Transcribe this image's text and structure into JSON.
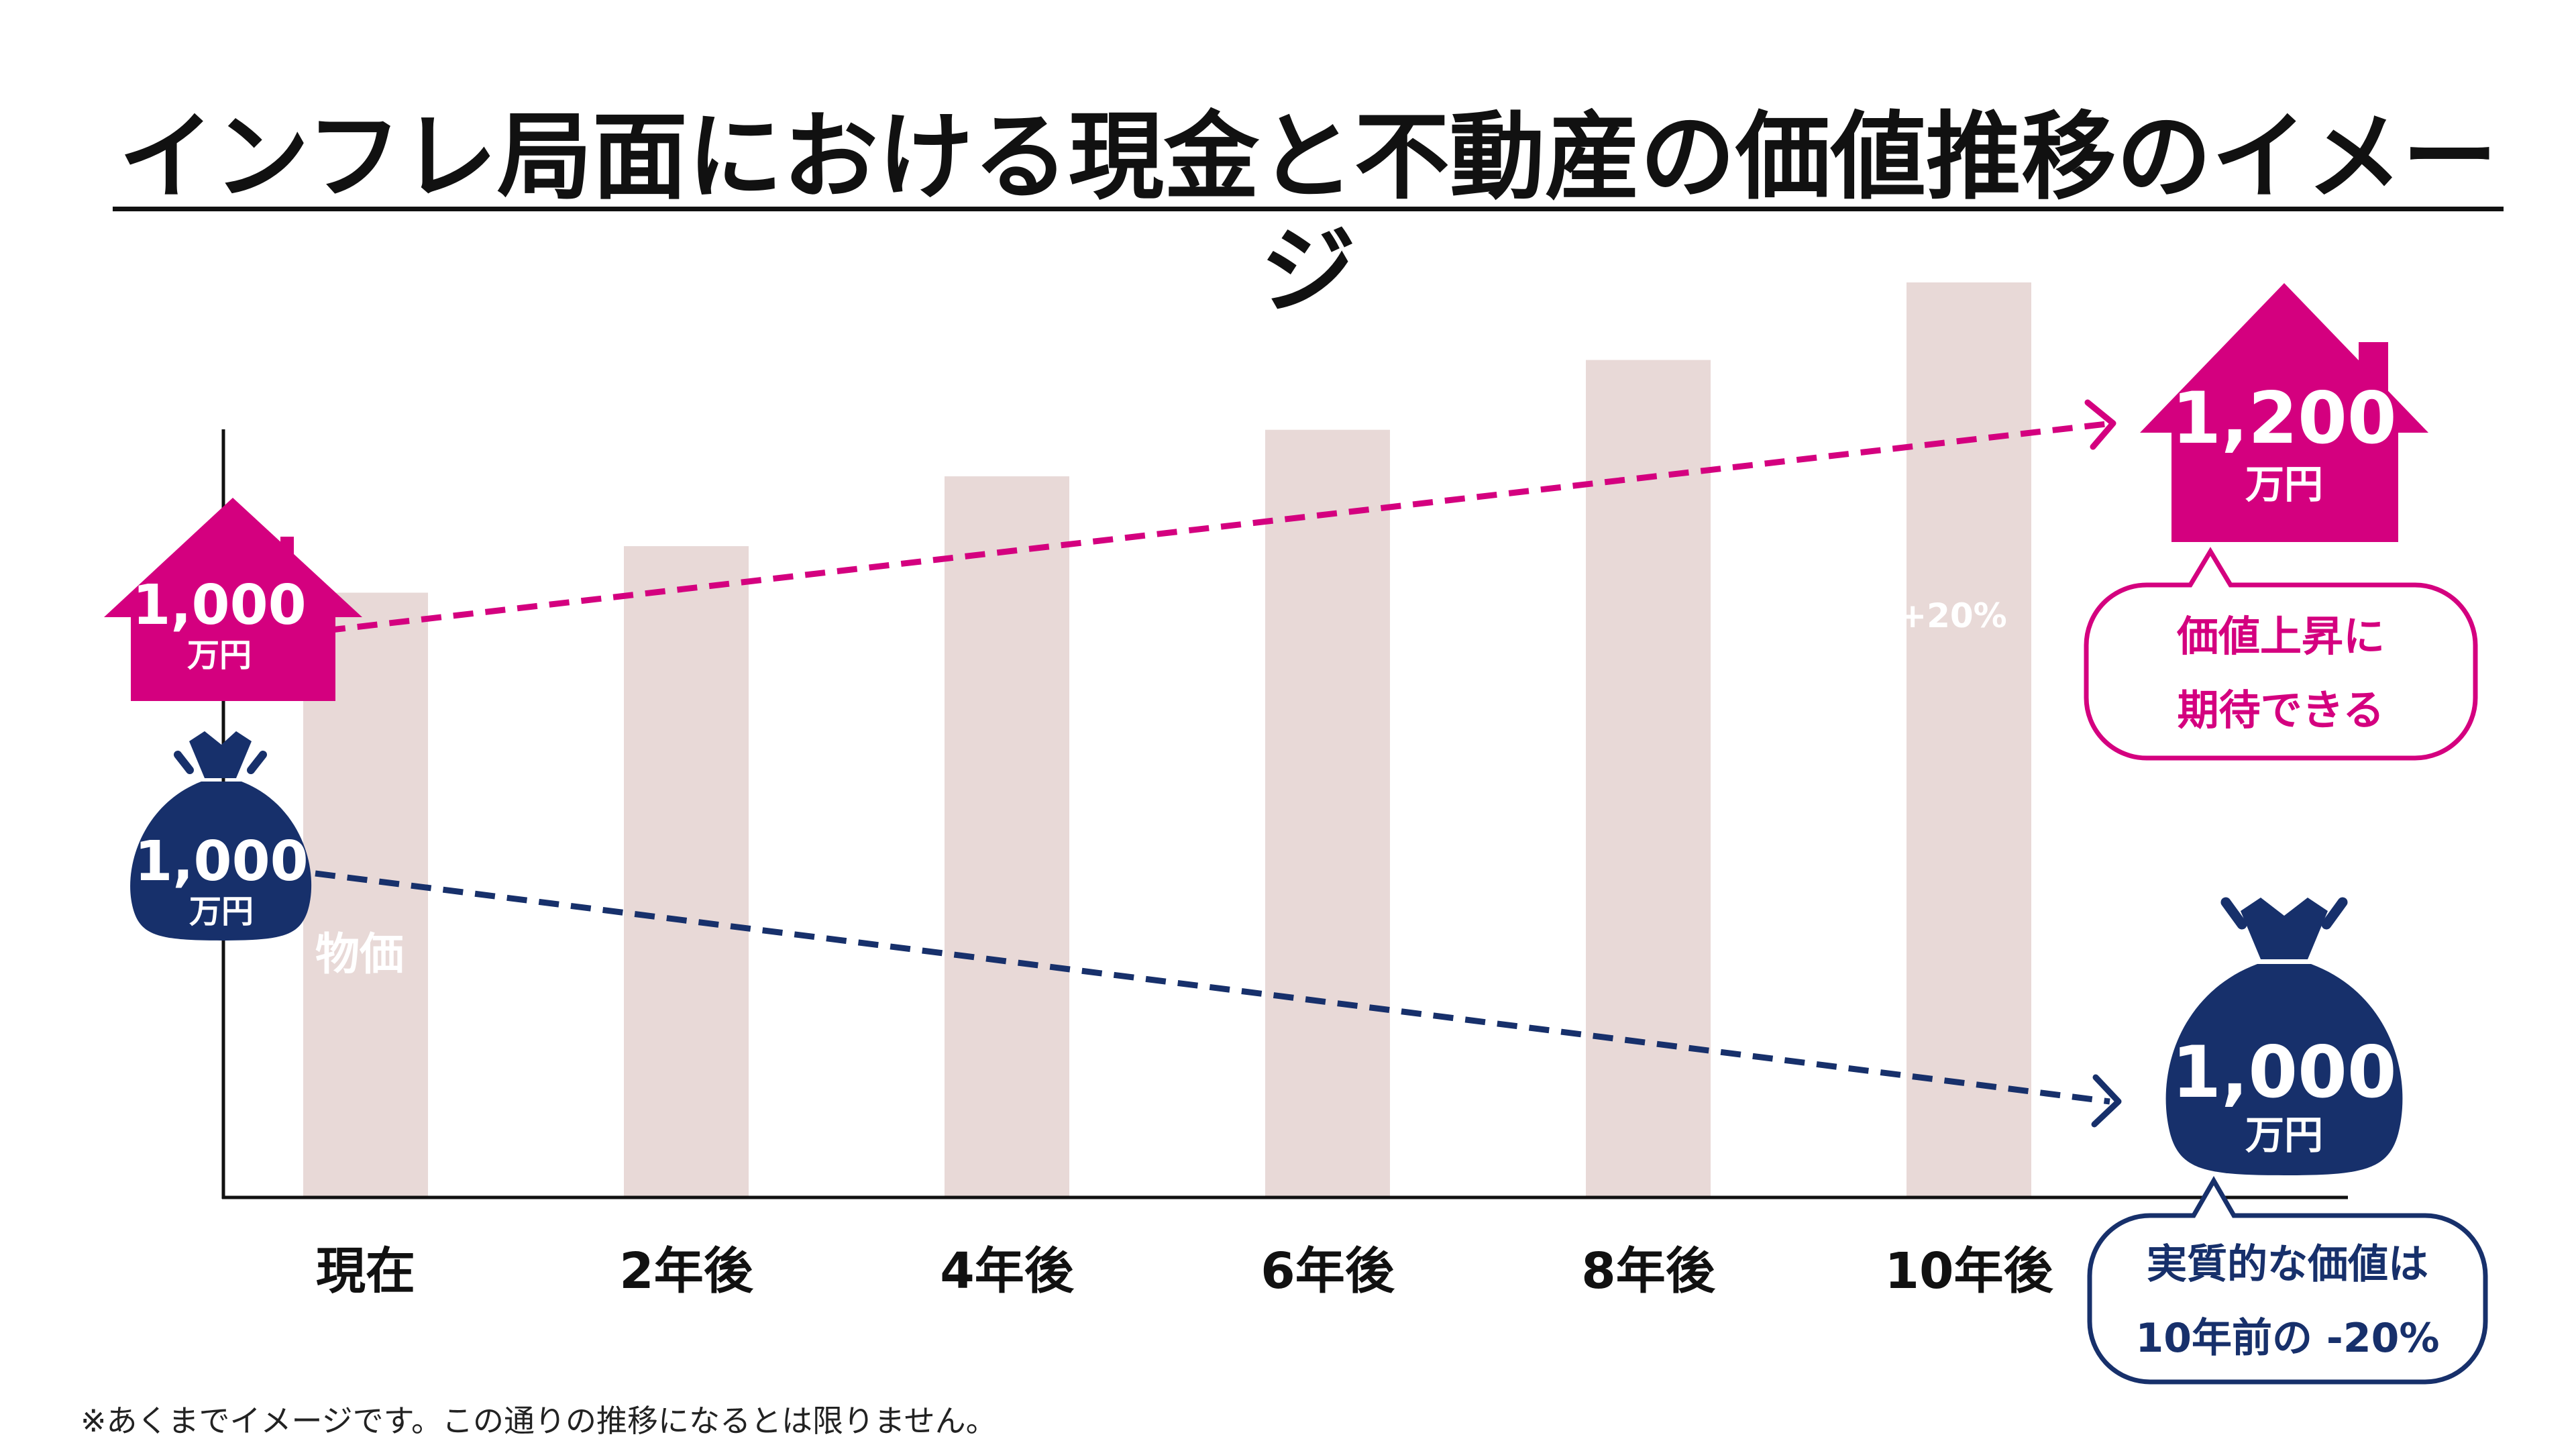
{
  "title": "インフレ局面における現金と不動産の価値推移のイメージ",
  "note": "※あくまでイメージです。この通りの推移になるとは限りません。",
  "colors": {
    "property": "#d4007f",
    "cash": "#17306b",
    "bar": "#e8d9d7",
    "axis": "#111111"
  },
  "chart_data": {
    "type": "bar",
    "categories": [
      "現在",
      "2年後",
      "4年後",
      "6年後",
      "8年後",
      "10年後"
    ],
    "series": [
      {
        "name": "物価",
        "values": [
          100,
          103,
          107.5,
          110.5,
          115,
          120
        ]
      }
    ],
    "ylim": [
      80,
      120
    ],
    "bar_labels": {
      "first": "物価",
      "last": "+20%"
    },
    "property": {
      "start": {
        "value": "1,000",
        "unit": "万円"
      },
      "end": {
        "value": "1,200",
        "unit": "万円"
      },
      "callout": [
        "価値上昇に",
        "期待できる"
      ]
    },
    "cash": {
      "start": {
        "value": "1,000",
        "unit": "万円"
      },
      "end": {
        "value": "1,000",
        "unit": "万円"
      },
      "callout": [
        "実質的な価値は",
        "10年前の -20%"
      ]
    }
  }
}
